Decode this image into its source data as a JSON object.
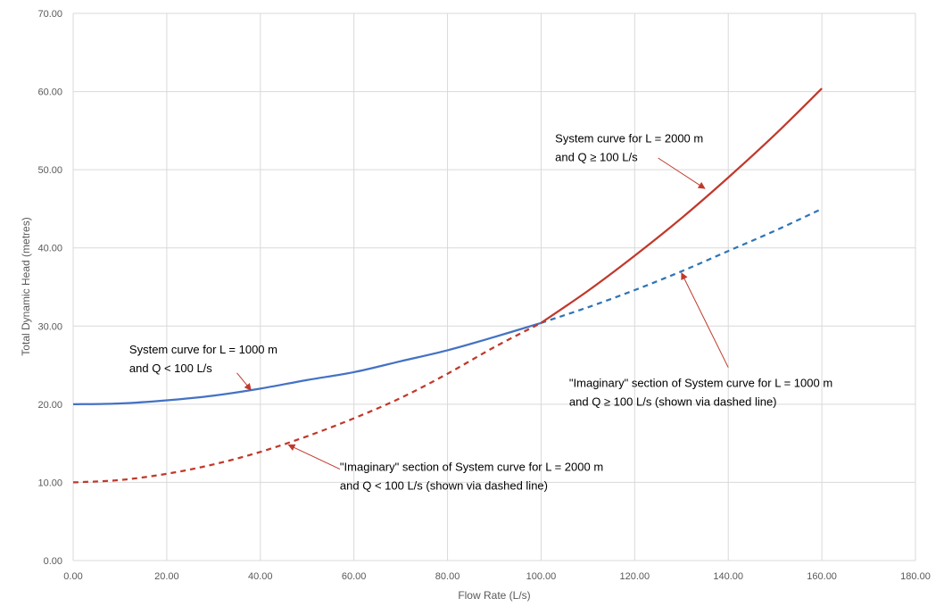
{
  "chart_data": {
    "type": "line",
    "title": "",
    "xlabel": "Flow Rate (L/s)",
    "ylabel": "Total Dynamic Head (metres)",
    "xlim": [
      0,
      180
    ],
    "ylim": [
      0,
      70
    ],
    "x_ticks": [
      0,
      20,
      40,
      60,
      80,
      100,
      120,
      140,
      160,
      180
    ],
    "y_ticks": [
      0,
      10,
      20,
      30,
      40,
      50,
      60,
      70
    ],
    "x_tick_labels": [
      "0.00",
      "20.00",
      "40.00",
      "60.00",
      "80.00",
      "100.00",
      "120.00",
      "140.00",
      "160.00",
      "180.00"
    ],
    "y_tick_labels": [
      "0.00",
      "10.00",
      "20.00",
      "30.00",
      "40.00",
      "50.00",
      "60.00",
      "70.00"
    ],
    "grid": true,
    "series": [
      {
        "name": "System curve for L = 1000 m (Q < 100 L/s)",
        "color": "#4472c4",
        "dash": "solid",
        "x": [
          0,
          10,
          20,
          30,
          40,
          50,
          60,
          70,
          80,
          90,
          100
        ],
        "y": [
          20.0,
          20.1,
          20.5,
          21.1,
          22.0,
          23.1,
          24.1,
          25.5,
          26.9,
          28.6,
          30.4
        ]
      },
      {
        "name": "Imaginary section of System curve for L = 1000 m (Q ≥ 100 L/s)",
        "color": "#2e75b6",
        "dash": "dashed",
        "x": [
          100,
          110,
          120,
          130,
          140,
          150,
          160
        ],
        "y": [
          30.4,
          32.4,
          34.6,
          37.0,
          39.6,
          42.2,
          45.0
        ]
      },
      {
        "name": "Imaginary section of System curve for L = 2000 m (Q < 100 L/s)",
        "color": "#c0392b",
        "dash": "dashed",
        "x": [
          0,
          10,
          20,
          30,
          40,
          50,
          60,
          70,
          80,
          90,
          100
        ],
        "y": [
          10.0,
          10.3,
          11.1,
          12.3,
          13.9,
          15.9,
          18.2,
          20.8,
          23.9,
          27.3,
          30.4
        ]
      },
      {
        "name": "System curve for L = 2000 m (Q ≥ 100 L/s)",
        "color": "#c0392b",
        "dash": "solid",
        "x": [
          100,
          110,
          120,
          130,
          140,
          150,
          160
        ],
        "y": [
          30.4,
          34.5,
          39.0,
          43.8,
          49.0,
          54.5,
          60.4
        ]
      }
    ],
    "annotations": [
      {
        "lines": [
          "System curve for L = 2000 m",
          "and Q ≥ 100 L/s"
        ],
        "text_at": [
          103,
          53.5
        ],
        "arrow_from": [
          125,
          51.5
        ],
        "arrow_to": [
          135,
          47.6
        ]
      },
      {
        "lines": [
          "System curve for L = 1000 m",
          "and Q < 100 L/s"
        ],
        "text_at": [
          12,
          26.5
        ],
        "arrow_from": [
          35,
          24.0
        ],
        "arrow_to": [
          38,
          21.8
        ]
      },
      {
        "lines": [
          "\"Imaginary\" section of System curve for L = 1000 m",
          "and Q ≥ 100 L/s (shown via dashed line)"
        ],
        "text_at": [
          106,
          22.2
        ],
        "arrow_from": [
          140,
          24.7
        ],
        "arrow_to": [
          130,
          36.8
        ]
      },
      {
        "lines": [
          "\"Imaginary\" section of System curve for L = 2000 m",
          "and Q < 100 L/s (shown via dashed line)"
        ],
        "text_at": [
          57,
          11.5
        ],
        "arrow_from": [
          57,
          11.7
        ],
        "arrow_to": [
          46,
          14.8
        ]
      }
    ],
    "annotation_color": "#c0392b"
  }
}
